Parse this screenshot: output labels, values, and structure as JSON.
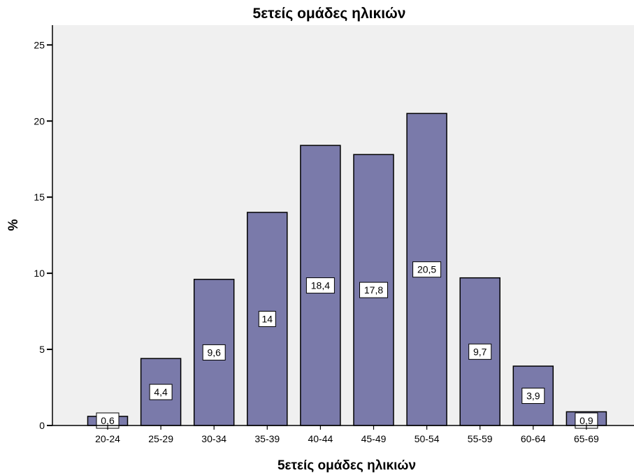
{
  "chart_data": {
    "type": "bar",
    "title": "5ετείς ομάδες ηλικιών",
    "xlabel": "5ετείς ομάδες ηλικιών",
    "ylabel": "%",
    "categories": [
      "20-24",
      "25-29",
      "30-34",
      "35-39",
      "40-44",
      "45-49",
      "50-54",
      "55-59",
      "60-64",
      "65-69"
    ],
    "values": [
      0.6,
      4.4,
      9.6,
      14,
      18.4,
      17.8,
      20.5,
      9.7,
      3.9,
      0.9
    ],
    "data_labels": [
      "0,6",
      "4,4",
      "9,6",
      "14",
      "18,4",
      "17,8",
      "20,5",
      "9,7",
      "3,9",
      "0,9"
    ],
    "yticks": [
      0,
      5,
      10,
      15,
      20,
      25
    ],
    "ylim": [
      0,
      26.3
    ],
    "grid": false,
    "colors": {
      "plot_background": "#f0f0f0",
      "bar_fill": "#7a7aaa",
      "bar_stroke": "#000000"
    }
  }
}
